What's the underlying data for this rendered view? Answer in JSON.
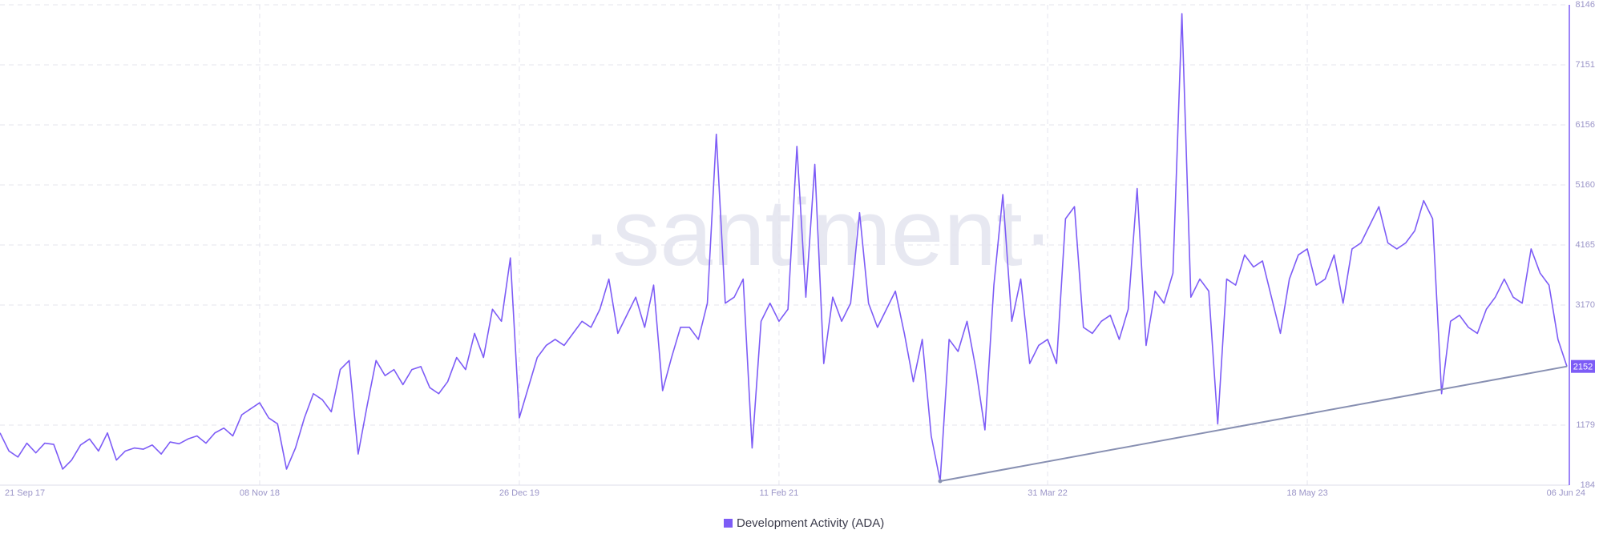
{
  "chart_data": {
    "type": "line",
    "watermark": "·santiment·",
    "categories": [
      "21 Sep 17",
      null,
      null,
      null,
      null,
      null,
      null,
      null,
      null,
      null,
      null,
      null,
      null,
      null,
      null,
      null,
      null,
      null,
      null,
      null,
      null,
      null,
      null,
      null,
      null,
      null,
      null,
      null,
      null,
      "08 Nov 18",
      null,
      null,
      null,
      null,
      null,
      null,
      null,
      null,
      null,
      null,
      null,
      null,
      null,
      null,
      null,
      null,
      null,
      null,
      null,
      null,
      null,
      null,
      null,
      null,
      null,
      null,
      null,
      null,
      "26 Dec 19",
      null,
      null,
      null,
      null,
      null,
      null,
      null,
      null,
      null,
      null,
      null,
      null,
      null,
      null,
      null,
      null,
      null,
      null,
      null,
      null,
      null,
      null,
      null,
      null,
      null,
      null,
      null,
      null,
      "11 Feb 21",
      null,
      null,
      null,
      null,
      null,
      null,
      null,
      null,
      null,
      null,
      null,
      null,
      null,
      null,
      null,
      null,
      null,
      null,
      null,
      null,
      null,
      null,
      null,
      null,
      null,
      null,
      null,
      null,
      null,
      "31 Mar 22",
      null,
      null,
      null,
      null,
      null,
      null,
      null,
      null,
      null,
      null,
      null,
      null,
      null,
      null,
      null,
      null,
      null,
      null,
      null,
      null,
      null,
      null,
      null,
      null,
      null,
      null,
      null,
      null,
      "18 May 23",
      null,
      null,
      null,
      null,
      null,
      null,
      null,
      null,
      null,
      null,
      null,
      null,
      null,
      null,
      null,
      null,
      null,
      null,
      null,
      null,
      null,
      null,
      null,
      null,
      null,
      null,
      null,
      null,
      "06 Jun 24"
    ],
    "series": [
      {
        "name": "Development Activity (ADA)",
        "color": "#7d5cf6",
        "values": [
          1050,
          750,
          650,
          880,
          720,
          880,
          860,
          450,
          600,
          850,
          950,
          750,
          1050,
          600,
          750,
          800,
          780,
          850,
          700,
          900,
          870,
          950,
          1000,
          880,
          1050,
          1130,
          1000,
          1350,
          1450,
          1550,
          1300,
          1200,
          450,
          800,
          1300,
          1700,
          1600,
          1400,
          2100,
          2250,
          700,
          1500,
          2250,
          2000,
          2100,
          1850,
          2100,
          2150,
          1800,
          1700,
          1900,
          2300,
          2100,
          2700,
          2300,
          3100,
          2900,
          3950,
          1300,
          1800,
          2300,
          2500,
          2600,
          2500,
          2700,
          2900,
          2800,
          3100,
          3600,
          2700,
          3000,
          3300,
          2800,
          3500,
          1750,
          2300,
          2800,
          2800,
          2600,
          3200,
          6000,
          3200,
          3300,
          3600,
          800,
          2900,
          3200,
          2900,
          3100,
          5800,
          3300,
          5500,
          2200,
          3300,
          2900,
          3200,
          4700,
          3200,
          2800,
          3100,
          3400,
          2700,
          1900,
          2600,
          1000,
          250,
          2600,
          2400,
          2900,
          2100,
          1100,
          3500,
          5000,
          2900,
          3600,
          2200,
          2500,
          2600,
          2200,
          4600,
          4800,
          2800,
          2700,
          2900,
          3000,
          2600,
          3100,
          5100,
          2500,
          3400,
          3200,
          3700,
          8000,
          3300,
          3600,
          3400,
          1200,
          3600,
          3500,
          4000,
          3800,
          3900,
          3300,
          2700,
          3600,
          4000,
          4100,
          3500,
          3600,
          4000,
          3200,
          4100,
          4200,
          4500,
          4800,
          4200,
          4100,
          4200,
          4400,
          4900,
          4600,
          1700,
          2900,
          3000,
          2800,
          2700,
          3100,
          3300,
          3600,
          3300,
          3200,
          4100,
          3700,
          3500,
          2600,
          2152
        ]
      }
    ],
    "ylim": [
      184,
      8146
    ],
    "yticks": [
      184,
      1179,
      3170,
      4165,
      5160,
      6156,
      7151,
      8146
    ],
    "grid": true,
    "trendline": {
      "color": "#8890b2"
    },
    "legend": "bottom"
  }
}
